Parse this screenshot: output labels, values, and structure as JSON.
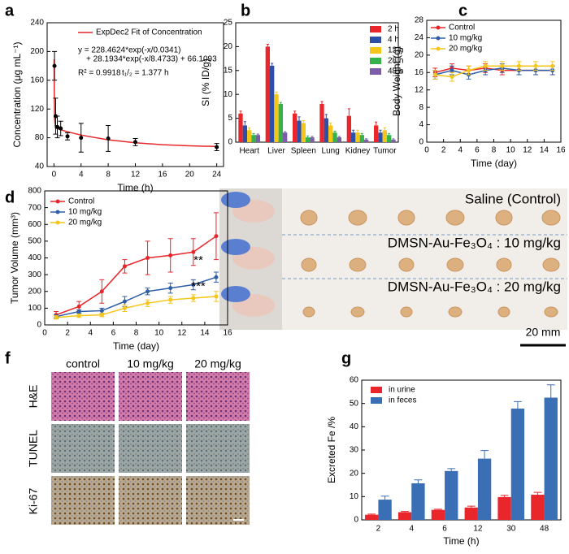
{
  "chart_data": [
    {
      "type": "line",
      "panel": "a",
      "x_label": "Time (h)",
      "y_label": "Concentration (μg mL⁻¹)",
      "xlim": [
        -1,
        25
      ],
      "xticks": [
        0,
        4,
        8,
        12,
        16,
        20,
        24
      ],
      "ylim": [
        40,
        240
      ],
      "yticks": [
        40,
        80,
        120,
        160,
        200,
        240
      ],
      "legend": "upper right",
      "annotations": [
        "y = 228.4624*exp(-x/0.0341)",
        "+ 28.1934*exp(-x/8.4733) + 66.1093",
        "R² = 0.9918",
        "t₁/₂ = 1.377 h"
      ],
      "series": [
        {
          "name": "ExpDec2 Fit of Concentration",
          "color": "#e8262b",
          "marker": false,
          "x": [
            0.03,
            0.05,
            0.1,
            0.2,
            0.5,
            1,
            2,
            4,
            8,
            12,
            16,
            20,
            24
          ],
          "values": [
            189.0,
            146.9,
            106.2,
            94.3,
            92.7,
            91.2,
            88.4,
            83.7,
            77.1,
            73.0,
            70.4,
            68.8,
            67.8
          ]
        },
        {
          "color": "#000000",
          "line": false,
          "x": [
            0.083,
            0.25,
            0.5,
            1,
            2,
            4,
            8,
            12,
            24
          ],
          "values": [
            180,
            110,
            95,
            93,
            82,
            80,
            79,
            74,
            67
          ],
          "errors": [
            20,
            25,
            15,
            10,
            5,
            20,
            18,
            5,
            5
          ]
        }
      ]
    },
    {
      "type": "bar",
      "panel": "b",
      "y_label": "SI (% ID/g)",
      "categories": [
        "Heart",
        "Liver",
        "Spleen",
        "Lung",
        "Kidney",
        "Tumor"
      ],
      "ylim": [
        0,
        25
      ],
      "yticks": [
        0,
        5,
        10,
        15,
        20,
        25
      ],
      "legend": "upper right",
      "series": [
        {
          "name": "2 h",
          "color": "#e8262b",
          "values": [
            6,
            20,
            6,
            8,
            5.5,
            3.5
          ],
          "errors": [
            0.5,
            0.5,
            0.5,
            0.5,
            1.5,
            0.7
          ]
        },
        {
          "name": "4 h",
          "color": "#2e4fa8",
          "values": [
            3.5,
            16,
            4.5,
            5,
            2,
            2
          ],
          "errors": [
            0.8,
            0.5,
            0.8,
            0.8,
            0.5,
            0.5
          ]
        },
        {
          "name": "12 h",
          "color": "#f5c518",
          "values": [
            2.5,
            10,
            4,
            3.5,
            2,
            2.5
          ],
          "errors": [
            0.5,
            0.5,
            0.5,
            0.5,
            0.5,
            0.5
          ]
        },
        {
          "name": "28 h",
          "color": "#35b34a",
          "values": [
            1.5,
            8,
            1,
            2,
            1.5,
            1.5
          ],
          "errors": [
            0.3,
            0.3,
            0.3,
            0.3,
            0.3,
            0.3
          ]
        },
        {
          "name": "48 h",
          "color": "#7b5ea7",
          "values": [
            1.5,
            2,
            1,
            1,
            0.5,
            0.5
          ],
          "errors": [
            0.2,
            0.2,
            0.2,
            0.2,
            0.2,
            0.2
          ]
        }
      ]
    },
    {
      "type": "line",
      "panel": "c",
      "x_label": "Time (day)",
      "y_label": "Body Weight (g)",
      "xlim": [
        0,
        16
      ],
      "xticks": [
        0,
        2,
        4,
        6,
        8,
        10,
        12,
        14,
        16
      ],
      "ylim": [
        0,
        28
      ],
      "yticks": [
        0,
        4,
        8,
        12,
        16,
        20,
        24,
        28
      ],
      "legend": "upper left",
      "series": [
        {
          "name": "Control",
          "color": "#e8262b",
          "x": [
            1,
            3,
            5,
            7,
            9,
            11,
            13,
            15
          ],
          "values": [
            16,
            17,
            16.5,
            17,
            16.5,
            16.5,
            16.5,
            16.5
          ],
          "errors": [
            1,
            1,
            1,
            1,
            1,
            1,
            1,
            1
          ]
        },
        {
          "name": "10 mg/kg",
          "color": "#2e5ea8",
          "x": [
            1,
            3,
            5,
            7,
            9,
            11,
            13,
            15
          ],
          "values": [
            15.5,
            16.5,
            15.5,
            16.5,
            17,
            16.5,
            16.5,
            16.5
          ],
          "errors": [
            1,
            1,
            1,
            1,
            1,
            1,
            1,
            1
          ]
        },
        {
          "name": "20 mg/kg",
          "color": "#f5c518",
          "x": [
            1,
            3,
            5,
            7,
            9,
            11,
            13,
            15
          ],
          "values": [
            15.5,
            15,
            16.5,
            17.5,
            17.5,
            17.5,
            17.5,
            17.5
          ],
          "errors": [
            1,
            1,
            1,
            1,
            1,
            1,
            1,
            1
          ]
        }
      ]
    },
    {
      "type": "line",
      "panel": "d",
      "x_label": "Time (day)",
      "y_label": "Tumor Volume (mm³)",
      "xlim": [
        0,
        16
      ],
      "xticks": [
        0,
        2,
        4,
        6,
        8,
        10,
        12,
        14,
        16
      ],
      "ylim": [
        0,
        800
      ],
      "yticks": [
        0,
        100,
        200,
        300,
        400,
        500,
        600,
        700,
        800
      ],
      "legend": "upper left",
      "annotations": [
        "**",
        "***"
      ],
      "series": [
        {
          "name": "Control",
          "color": "#e8262b",
          "x": [
            1,
            3,
            5,
            7,
            9,
            11,
            13,
            15
          ],
          "values": [
            60,
            110,
            200,
            350,
            400,
            415,
            435,
            530
          ],
          "errors": [
            20,
            30,
            70,
            40,
            100,
            100,
            80,
            140
          ]
        },
        {
          "name": "10 mg/kg",
          "color": "#2e5ea8",
          "x": [
            1,
            3,
            5,
            7,
            9,
            11,
            13,
            15
          ],
          "values": [
            50,
            80,
            85,
            140,
            200,
            220,
            240,
            285
          ],
          "errors": [
            10,
            10,
            15,
            30,
            20,
            30,
            30,
            30
          ]
        },
        {
          "name": "20 mg/kg",
          "color": "#f5c518",
          "x": [
            1,
            3,
            5,
            7,
            9,
            11,
            13,
            15
          ],
          "values": [
            45,
            55,
            60,
            100,
            130,
            150,
            160,
            170
          ],
          "errors": [
            10,
            10,
            10,
            20,
            20,
            20,
            20,
            30
          ]
        }
      ]
    },
    {
      "type": "bar",
      "panel": "g",
      "x_label": "Time (h)",
      "y_label": "Excreted Fe /%",
      "categories": [
        "2",
        "4",
        "6",
        "12",
        "30",
        "48"
      ],
      "ylim": [
        0,
        60
      ],
      "yticks": [
        0,
        10,
        20,
        30,
        40,
        50,
        60
      ],
      "legend": "upper left",
      "series": [
        {
          "name": "in urine",
          "color": "#e8262b",
          "values": [
            2.2,
            3.3,
            4.3,
            5.3,
            9.8,
            10.8
          ],
          "errors": [
            0.3,
            0.3,
            0.3,
            0.6,
            0.7,
            1
          ]
        },
        {
          "name": "in feces",
          "color": "#3a6fb5",
          "values": [
            8.7,
            15.7,
            21,
            26.3,
            47.8,
            52.5
          ],
          "errors": [
            1.5,
            1.5,
            1,
            3.5,
            3,
            5.5
          ]
        }
      ]
    }
  ],
  "photo_panel": {
    "panel": "e",
    "rows": [
      "Saline (Control)",
      "DMSN-Au-Fe₃O₄ : 10 mg/kg",
      "DMSN-Au-Fe₃O₄ : 20 mg/kg"
    ],
    "scale_bar": "20 mm"
  },
  "histology_panel": {
    "panel": "f",
    "columns": [
      "control",
      "10 mg/kg",
      "20 mg/kg"
    ],
    "rows": [
      "H&E",
      "TUNEL",
      "Ki-67"
    ]
  }
}
